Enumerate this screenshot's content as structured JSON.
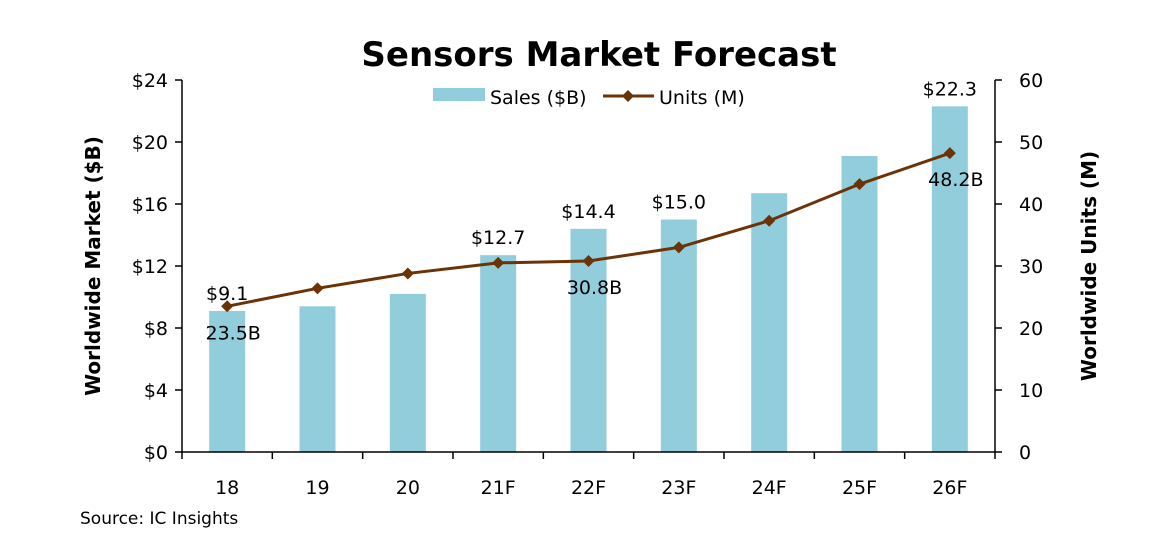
{
  "chart_data": {
    "type": "bar",
    "title": "Sensors Market Forecast",
    "categories": [
      "18",
      "19",
      "20",
      "21F",
      "22F",
      "23F",
      "24F",
      "25F",
      "26F"
    ],
    "series": [
      {
        "name": "Sales ($B)",
        "type": "bar",
        "axis": "left",
        "color": "#92CDDC",
        "values": [
          9.1,
          9.4,
          10.2,
          12.7,
          14.4,
          15.0,
          16.7,
          19.1,
          22.3
        ],
        "data_labels": [
          "$9.1",
          "",
          "",
          "$12.7",
          "$14.4",
          "$15.0",
          "",
          "",
          "$22.3"
        ]
      },
      {
        "name": "Units (M)",
        "type": "line",
        "axis": "right",
        "color": "#6B3307",
        "values": [
          23.5,
          26.4,
          28.8,
          30.5,
          30.8,
          33.0,
          37.3,
          43.2,
          48.2
        ],
        "data_labels": [
          "23.5B",
          "",
          "",
          "",
          "30.8B",
          "",
          "",
          "",
          "48.2B"
        ]
      }
    ],
    "ylabel": "Worldwide Market ($B)",
    "y2label": "Worldwide Units (M)",
    "ylim": [
      0,
      24
    ],
    "y2lim": [
      0,
      60
    ],
    "yticks": [
      "$0",
      "$4",
      "$8",
      "$12",
      "$16",
      "$20",
      "$24"
    ],
    "y2ticks": [
      "0",
      "10",
      "20",
      "30",
      "40",
      "50",
      "60"
    ],
    "grid": false,
    "legend_position": "top-center"
  },
  "source": "Source: IC Insights"
}
